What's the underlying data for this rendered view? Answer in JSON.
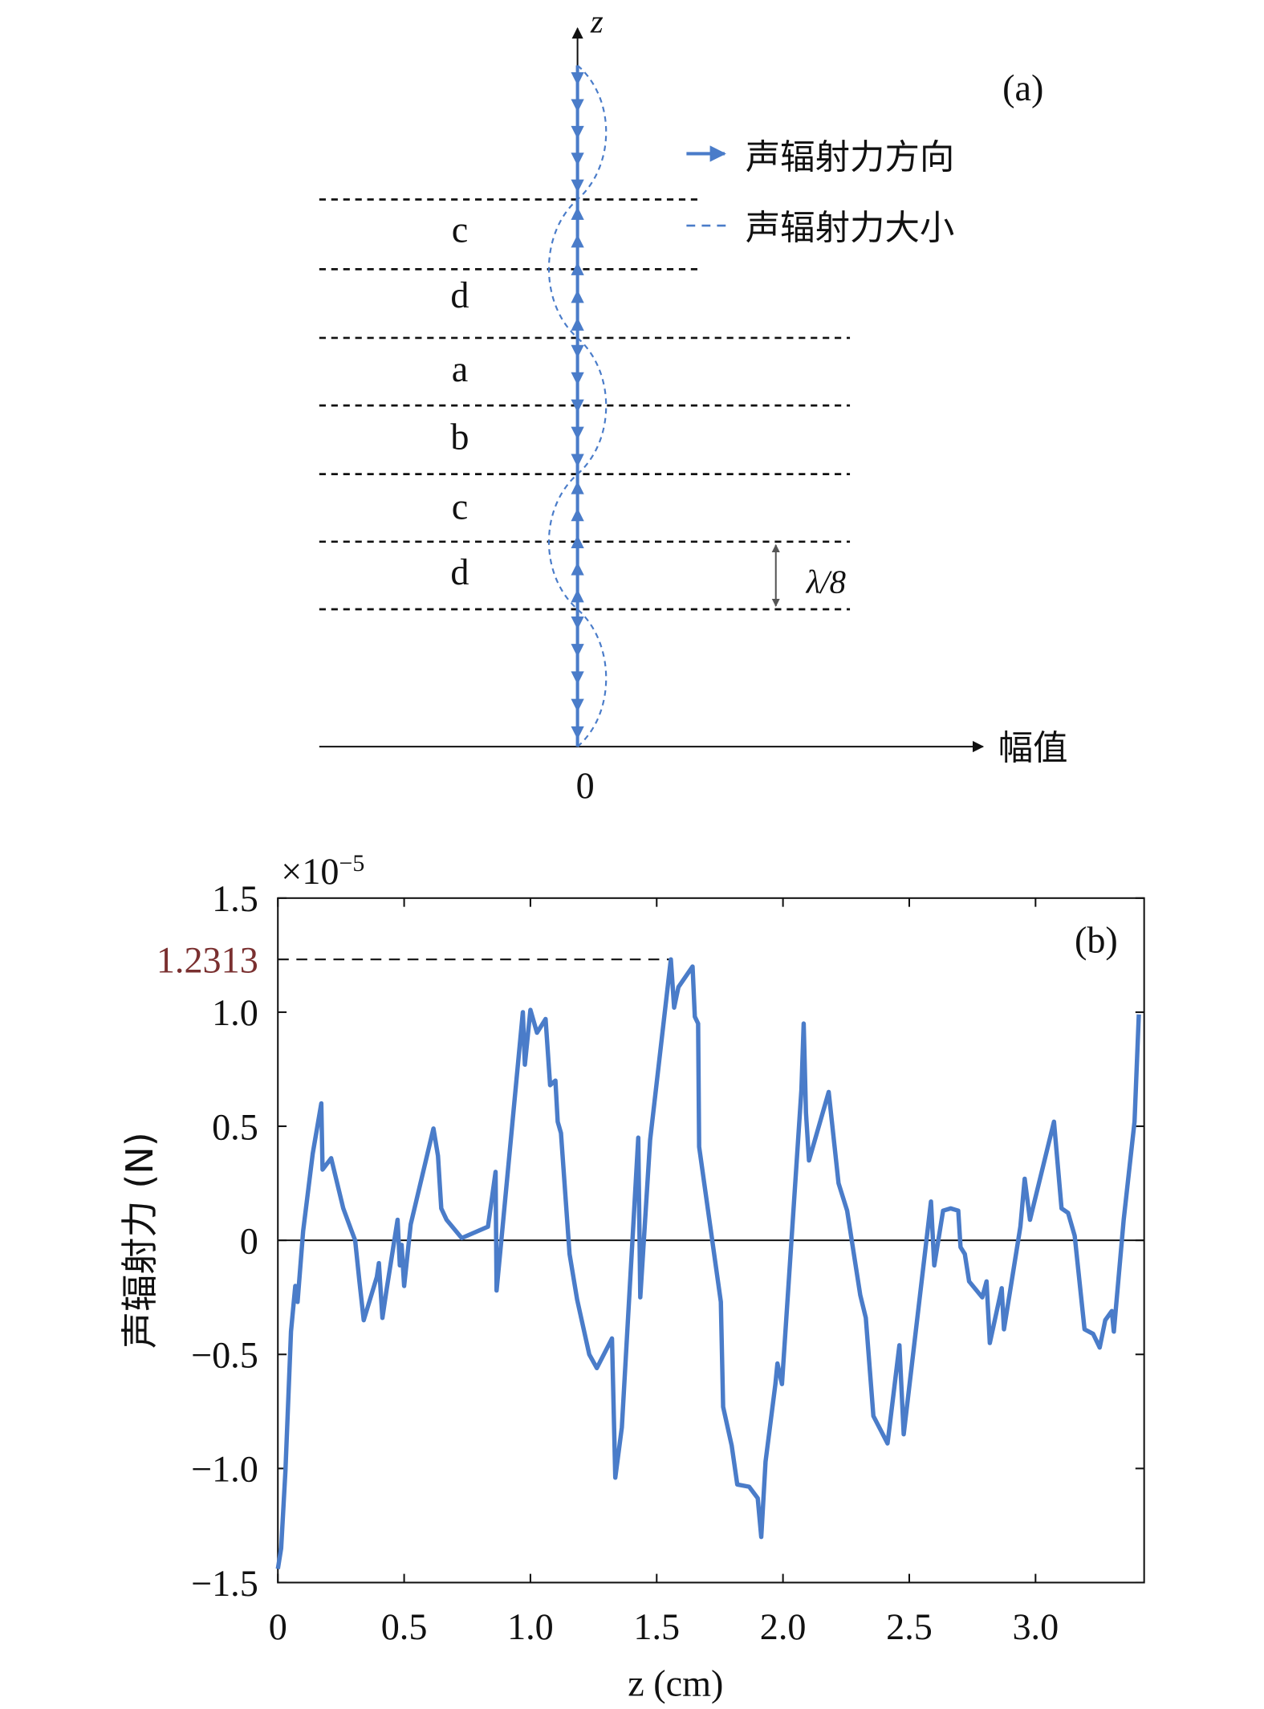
{
  "diagram": {
    "label": "(a)",
    "axis_z": "z",
    "axis_amplitude": "幅值",
    "origin": "0",
    "legend": [
      "声辐射力方向",
      "声辐射力大小"
    ],
    "layers": [
      "c",
      "d",
      "a",
      "b",
      "c",
      "d"
    ],
    "spacing": "λ/8"
  },
  "chart_data": {
    "type": "line",
    "label": "(b)",
    "ylabel": "声辐射力 (N)",
    "xlabel": "z (cm)",
    "multiplier": {
      "base": "×10",
      "exponent": "−5"
    },
    "color": "#4a7cc9",
    "zero_line": true,
    "grid": false,
    "xlim": [
      0,
      3.43
    ],
    "ylim": [
      -1.5,
      1.5
    ],
    "xticks": [
      0,
      0.5,
      {
        "value": 1,
        "label": "1.0"
      },
      1.5,
      {
        "value": 2,
        "label": "2.0"
      },
      2.5,
      {
        "value": 3,
        "label": "3.0"
      }
    ],
    "yticks": [
      {
        "value": -1.5,
        "label": "−1.5"
      },
      {
        "value": -1,
        "label": "−1.0"
      },
      {
        "value": -0.5,
        "label": "−0.5"
      },
      0,
      0.5,
      {
        "value": 1,
        "label": "1.0"
      },
      1.5
    ],
    "annotations": [
      {
        "label": "1.2313",
        "value": 1.2313,
        "x": 1.556
      }
    ],
    "x": [
      0,
      0.013,
      0.03,
      0.052,
      0.069,
      0.078,
      0.1,
      0.138,
      0.172,
      0.177,
      0.211,
      0.259,
      0.289,
      0.306,
      0.323,
      0.34,
      0.392,
      0.4,
      0.414,
      0.43,
      0.474,
      0.483,
      0.49,
      0.5,
      0.526,
      0.616,
      0.634,
      0.647,
      0.668,
      0.728,
      0.832,
      0.862,
      0.866,
      0.884,
      0.97,
      0.978,
      1.0,
      1.026,
      1.06,
      1.078,
      1.099,
      1.108,
      1.121,
      1.155,
      1.185,
      1.233,
      1.263,
      1.323,
      1.336,
      1.362,
      1.427,
      1.435,
      1.474,
      1.556,
      1.569,
      1.586,
      1.642,
      1.651,
      1.664,
      1.668,
      1.754,
      1.763,
      1.797,
      1.819,
      1.866,
      1.9,
      1.914,
      1.931,
      1.97,
      1.978,
      1.996,
      2.073,
      2.082,
      2.091,
      2.103,
      2.181,
      2.22,
      2.254,
      2.306,
      2.328,
      2.358,
      2.414,
      2.461,
      2.478,
      2.586,
      2.599,
      2.634,
      2.664,
      2.694,
      2.703,
      2.72,
      2.737,
      2.789,
      2.806,
      2.819,
      2.866,
      2.875,
      2.94,
      2.957,
      2.978,
      3.073,
      3.103,
      3.129,
      3.155,
      3.194,
      3.228,
      3.254,
      3.276,
      3.302,
      3.31,
      3.349,
      3.392,
      3.409
    ],
    "values": [
      -1.44,
      -1.35,
      -1.01,
      -0.4,
      -0.2,
      -0.27,
      0.04,
      0.38,
      0.6,
      0.31,
      0.36,
      0.14,
      0.05,
      0,
      -0.18,
      -0.35,
      -0.16,
      -0.1,
      -0.34,
      -0.22,
      0.09,
      -0.11,
      -0.02,
      -0.2,
      0.07,
      0.49,
      0.37,
      0.14,
      0.09,
      0.01,
      0.06,
      0.3,
      -0.22,
      -0.01,
      1.0,
      0.77,
      1.01,
      0.91,
      0.97,
      0.68,
      0.7,
      0.52,
      0.47,
      -0.06,
      -0.26,
      -0.5,
      -0.56,
      -0.43,
      -1.04,
      -0.82,
      0.45,
      -0.25,
      0.44,
      1.2313,
      1.02,
      1.11,
      1.2,
      0.98,
      0.95,
      0.41,
      -0.27,
      -0.73,
      -0.9,
      -1.07,
      -1.08,
      -1.13,
      -1.3,
      -0.97,
      -0.63,
      -0.54,
      -0.63,
      0.66,
      0.95,
      0.56,
      0.35,
      0.65,
      0.25,
      0.13,
      -0.24,
      -0.34,
      -0.77,
      -0.89,
      -0.46,
      -0.85,
      0.17,
      -0.11,
      0.13,
      0.14,
      0.13,
      -0.03,
      -0.06,
      -0.18,
      -0.25,
      -0.18,
      -0.45,
      -0.21,
      -0.39,
      0.06,
      0.27,
      0.09,
      0.52,
      0.14,
      0.12,
      0.02,
      -0.39,
      -0.41,
      -0.47,
      -0.35,
      -0.31,
      -0.4,
      0.09,
      0.52,
      0.99
    ]
  }
}
